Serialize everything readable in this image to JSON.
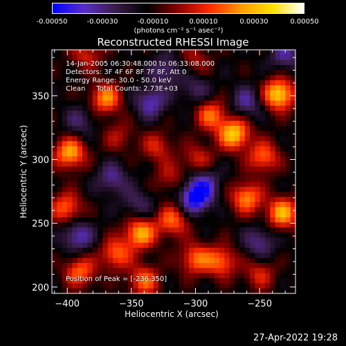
{
  "colorbar": {
    "ticks": [
      "-0.00050",
      "-0.00030",
      "-0.00010",
      "0.00010",
      "0.00030",
      "0.00050"
    ],
    "tick_values": [
      -0.0005,
      -0.0003,
      -0.0001,
      0.0001,
      0.0003,
      0.0005
    ],
    "unit_label": "(photons cm⁻² s⁻¹ asec⁻²)",
    "colors": [
      "#0000ff",
      "#5a2ec8",
      "#3a1c4a",
      "#000000",
      "#8a0000",
      "#ff2a00",
      "#ff9a00",
      "#ffe000",
      "#ffffff"
    ]
  },
  "chart_data": {
    "type": "heatmap",
    "title": "Reconstructed RHESSI Image",
    "xlabel": "Heliocentric X (arcsec)",
    "ylabel": "Heliocentric Y (arcsec)",
    "xlim": [
      -412,
      -222
    ],
    "ylim": [
      195,
      386
    ],
    "x_ticks": [
      -400,
      -350,
      -300,
      -250
    ],
    "y_ticks": [
      200,
      250,
      300,
      350
    ],
    "annotations": [
      "14-Jan-2005 06:30:48.000 to 06:33:08.000",
      "Detectors: 3F 4F 6F 8F 7F 8F, Att 0",
      "Energy Range: 30.0 - 50.0 keV",
      "Clean     Total Counts: 2.73E+03"
    ],
    "peak_label": "Position of Peak = [-236,350]",
    "peak": [
      -236,
      350
    ],
    "hotspots": [
      {
        "x": -235,
        "y": 351,
        "v": 0.00048
      },
      {
        "x": -270,
        "y": 320,
        "v": 0.00045
      },
      {
        "x": -288,
        "y": 335,
        "v": 0.0003
      },
      {
        "x": -370,
        "y": 348,
        "v": 0.00035
      },
      {
        "x": -398,
        "y": 305,
        "v": 0.0004
      },
      {
        "x": -247,
        "y": 302,
        "v": 0.0003
      },
      {
        "x": -260,
        "y": 270,
        "v": 0.00035
      },
      {
        "x": -232,
        "y": 258,
        "v": 0.0004
      },
      {
        "x": -318,
        "y": 252,
        "v": 0.0003
      },
      {
        "x": -343,
        "y": 242,
        "v": 0.0004
      },
      {
        "x": -362,
        "y": 226,
        "v": 0.0003
      },
      {
        "x": -300,
        "y": 222,
        "v": 0.0003
      },
      {
        "x": -280,
        "y": 220,
        "v": 0.0003
      },
      {
        "x": -390,
        "y": 212,
        "v": 0.0003
      },
      {
        "x": -340,
        "y": 205,
        "v": 0.0003
      },
      {
        "x": -401,
        "y": 262,
        "v": 0.0003
      },
      {
        "x": -250,
        "y": 210,
        "v": 0.0002
      },
      {
        "x": -298,
        "y": 300,
        "v": 0.0002
      },
      {
        "x": -320,
        "y": 286,
        "v": 0.00015
      },
      {
        "x": -330,
        "y": 310,
        "v": 0.0002
      },
      {
        "x": -385,
        "y": 382,
        "v": 0.0002
      },
      {
        "x": -300,
        "y": 378,
        "v": 0.00015
      },
      {
        "x": -360,
        "y": 318,
        "v": 0.00015
      },
      {
        "x": -300,
        "y": 270,
        "v": -0.0004
      },
      {
        "x": -293,
        "y": 283,
        "v": -0.0002
      },
      {
        "x": -392,
        "y": 240,
        "v": -0.00025
      },
      {
        "x": -260,
        "y": 345,
        "v": -0.0002
      },
      {
        "x": -335,
        "y": 345,
        "v": -0.00025
      },
      {
        "x": -365,
        "y": 285,
        "v": -0.0002
      },
      {
        "x": -345,
        "y": 265,
        "v": -0.00015
      },
      {
        "x": -250,
        "y": 235,
        "v": -0.0002
      },
      {
        "x": -300,
        "y": 355,
        "v": -0.00015
      },
      {
        "x": -323,
        "y": 370,
        "v": -0.0002
      },
      {
        "x": -390,
        "y": 330,
        "v": -0.00015
      },
      {
        "x": -230,
        "y": 382,
        "v": -0.0002
      }
    ]
  },
  "footer": {
    "date": "27-Apr-2022 19:28"
  }
}
